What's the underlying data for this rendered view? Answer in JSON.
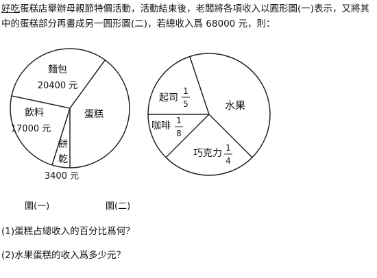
{
  "intro": {
    "underlined": "好吃",
    "text": "蛋糕店舉辦母親節特價活動，活動結束後，老闆將各項收入以圓形圖(一)表示，又將其中的蛋糕部分再畫成另一圓形圖(二)，若總收入爲 68000 元，則："
  },
  "figure1": {
    "caption": "圖(一)",
    "slices": [
      {
        "name": "麵包",
        "amount": "20400 元",
        "value": 20400
      },
      {
        "name": "蛋糕",
        "amount": "",
        "value": 27200
      },
      {
        "name_chars": [
          "餅",
          "乾"
        ],
        "amount": "3400 元",
        "value": 3400
      },
      {
        "name": "飲料",
        "amount": "17000 元",
        "value": 17000
      }
    ]
  },
  "figure2": {
    "caption": "圖(二)",
    "slices": [
      {
        "name": "起司",
        "num": "1",
        "den": "5"
      },
      {
        "name": "水果",
        "num": "",
        "den": ""
      },
      {
        "name": "咖啡",
        "num": "1",
        "den": "8"
      },
      {
        "name": "巧克力",
        "num": "1",
        "den": "4"
      }
    ]
  },
  "questions": [
    "(1)蛋糕占總收入的百分比爲何？",
    "(2)水果蛋糕的收入爲多少元？"
  ]
}
